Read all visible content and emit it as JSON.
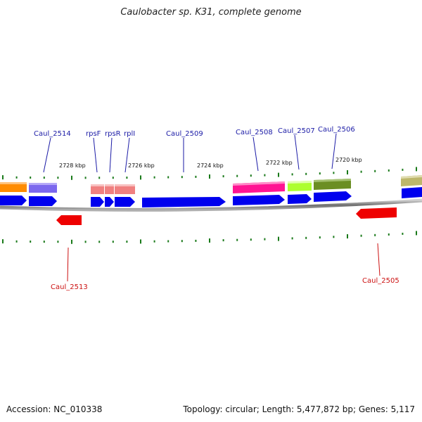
{
  "title": "Caulobacter sp. K31, complete genome",
  "footer": {
    "accession": "Accession: NC_010338",
    "summary": "Topology: circular; Length: 5,477,872 bp; Genes: 5,117"
  },
  "colors": {
    "forward_cds": "#0000ee",
    "reverse_cds": "#ee0000",
    "forward_label": "#1a1aa6",
    "reverse_label": "#cc1111",
    "tick": "#1a7a1a",
    "backbone": "#808080"
  },
  "scale_labels": [
    "2728 kbp",
    "2726 kbp",
    "2724 kbp",
    "2722 kbp",
    "2720 kbp"
  ],
  "forward_gene_labels": [
    "Caul_2514",
    "rpsF",
    "rpsR",
    "rplI",
    "Caul_2509",
    "Caul_2508",
    "Caul_2507",
    "Caul_2506"
  ],
  "reverse_gene_labels": [
    "Caul_2513",
    "Caul_2505"
  ],
  "cog_colors": [
    "#ff8c00",
    "#7b68ee",
    "#f08080",
    "#ff1493",
    "#adff2f",
    "#6b8e23",
    "#bdb76b"
  ]
}
